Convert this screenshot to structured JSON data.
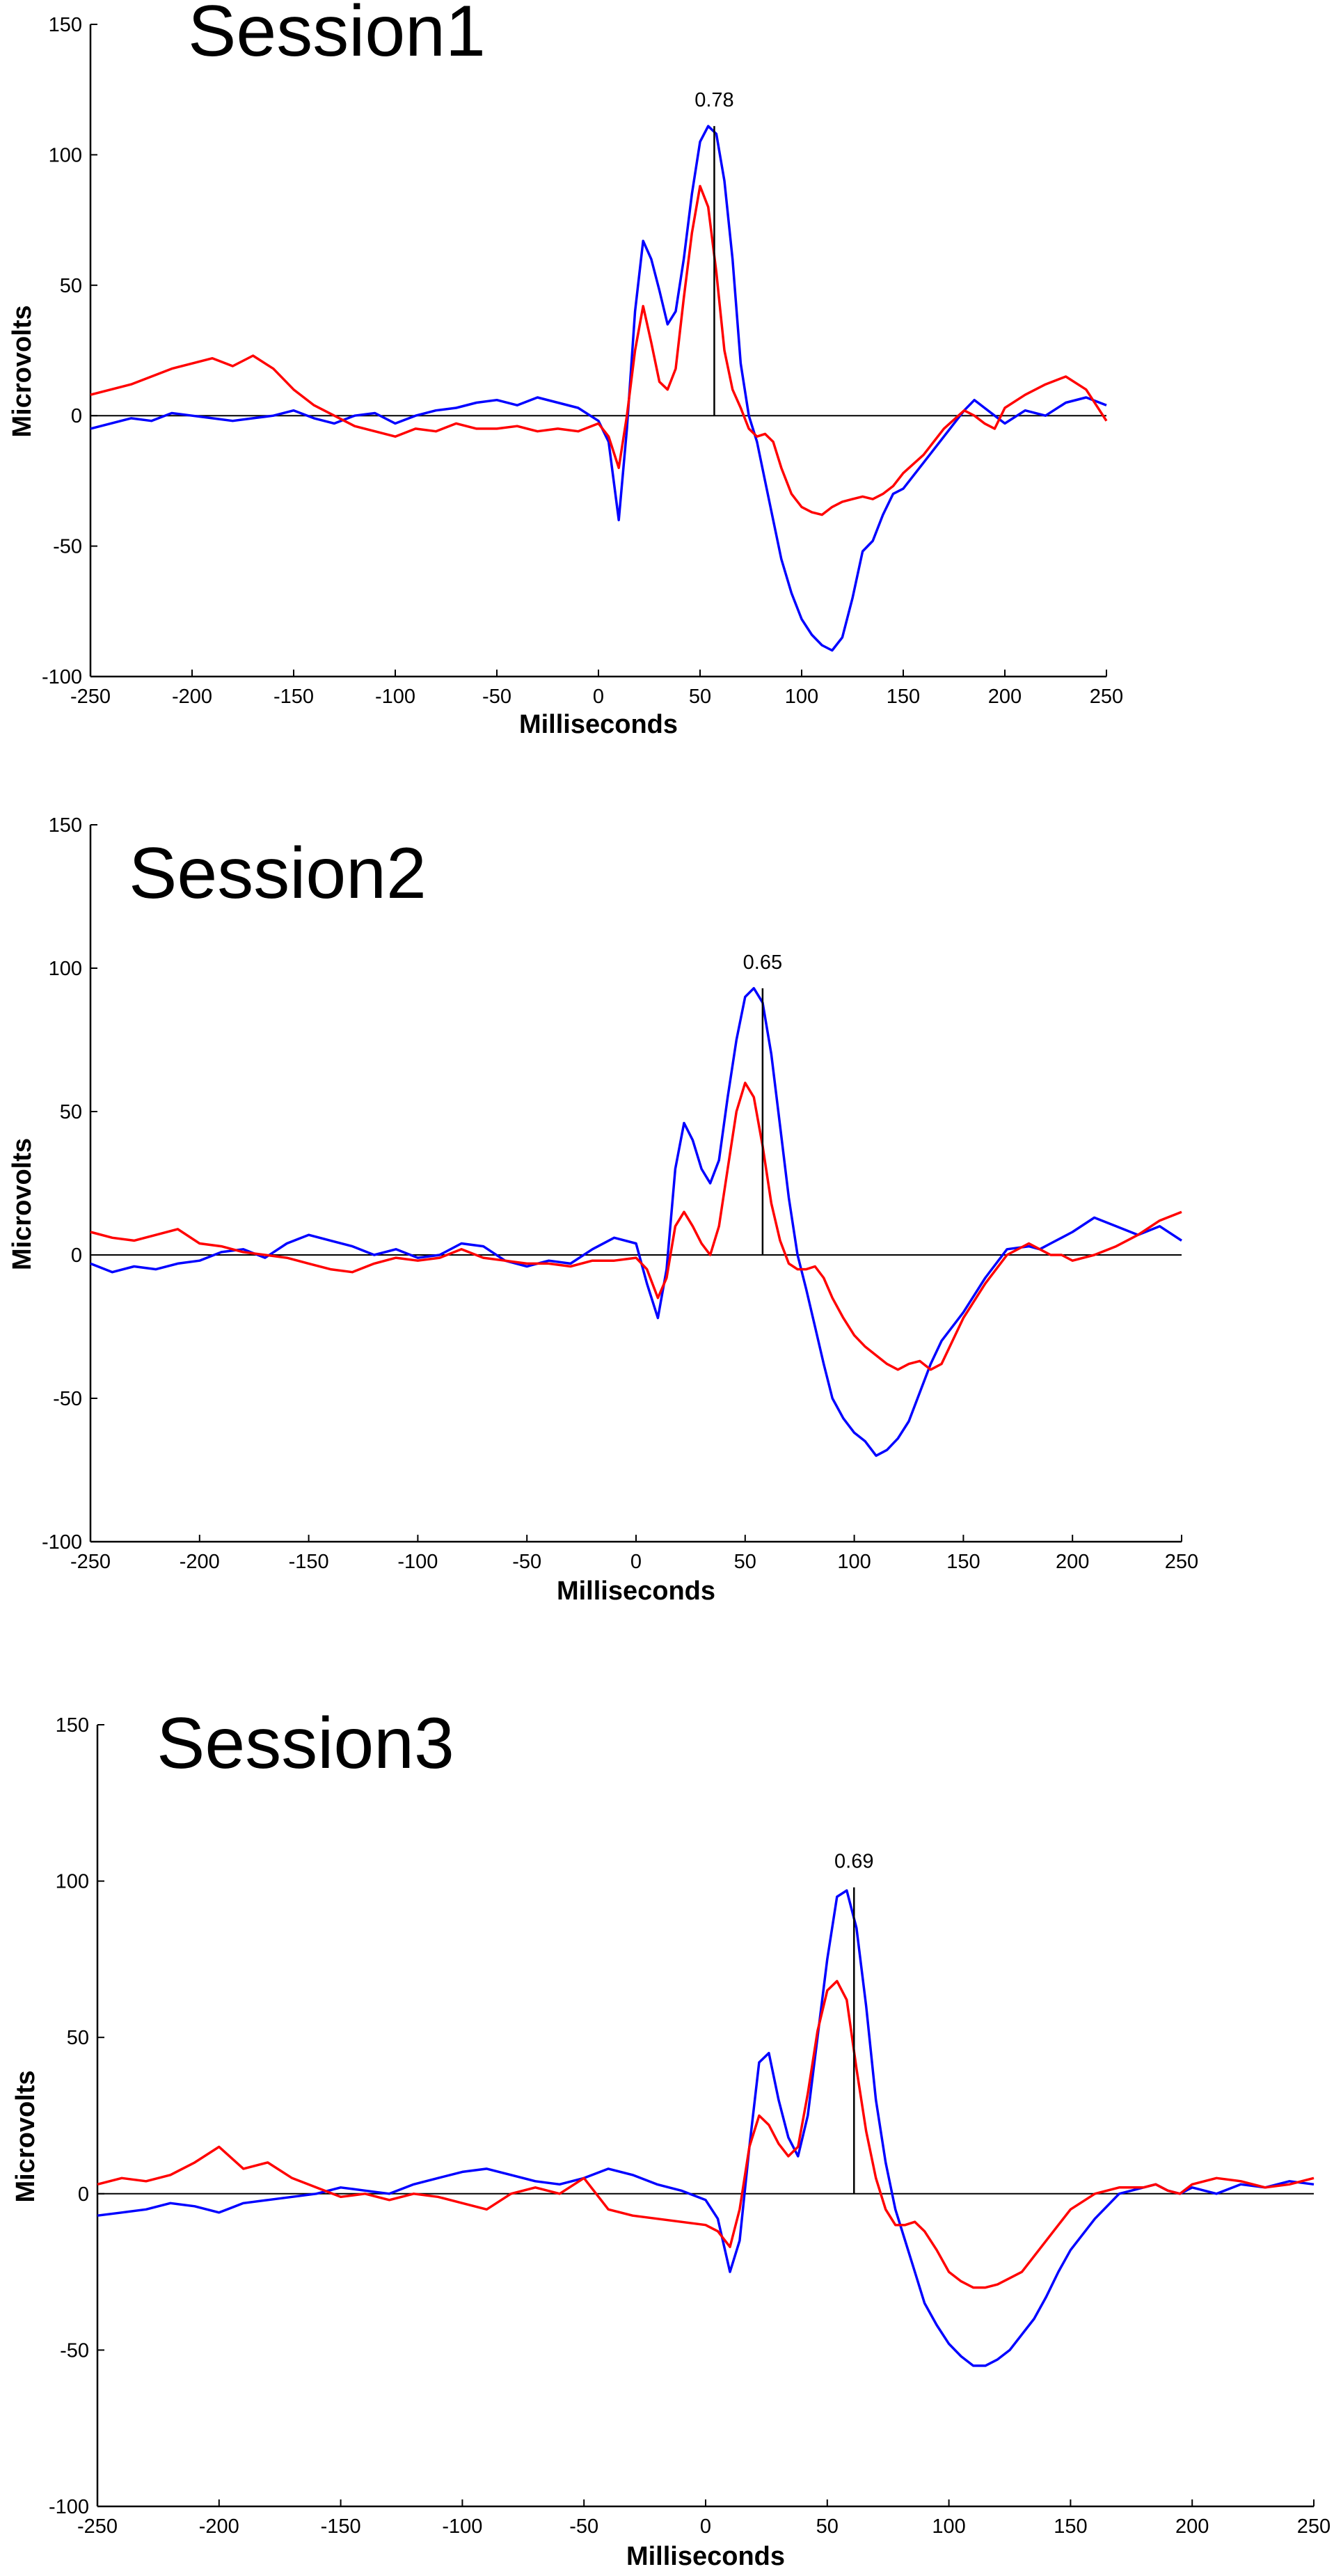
{
  "chart_data": [
    {
      "type": "line",
      "title": "Session1",
      "xlabel": "Milliseconds",
      "ylabel": "Microvolts",
      "xlim": [
        -250,
        250
      ],
      "ylim": [
        -100,
        150
      ],
      "xticks": [
        -250,
        -200,
        -150,
        -100,
        -50,
        0,
        50,
        100,
        150,
        200,
        250
      ],
      "yticks": [
        -100,
        -50,
        0,
        50,
        100,
        150
      ],
      "grid": false,
      "baseline": 0,
      "marker": {
        "x": 57,
        "y_top": 111,
        "label": "0.78"
      },
      "series": [
        {
          "color": "#0000ff",
          "x": [
            -250,
            -240,
            -230,
            -220,
            -210,
            -200,
            -190,
            -180,
            -170,
            -160,
            -150,
            -140,
            -130,
            -120,
            -110,
            -100,
            -90,
            -80,
            -70,
            -60,
            -50,
            -40,
            -30,
            -20,
            -10,
            0,
            5,
            10,
            14,
            18,
            22,
            26,
            30,
            34,
            38,
            42,
            46,
            50,
            54,
            58,
            62,
            66,
            70,
            74,
            78,
            82,
            86,
            90,
            95,
            100,
            105,
            110,
            115,
            120,
            125,
            130,
            135,
            140,
            145,
            150,
            160,
            170,
            180,
            185,
            190,
            195,
            200,
            210,
            220,
            230,
            240,
            250
          ],
          "values": [
            -5,
            -3,
            -1,
            -2,
            1,
            0,
            -1,
            -2,
            -1,
            0,
            2,
            -1,
            -3,
            0,
            1,
            -3,
            0,
            2,
            3,
            5,
            6,
            4,
            7,
            5,
            3,
            -2,
            -10,
            -40,
            -5,
            40,
            67,
            60,
            48,
            35,
            40,
            60,
            85,
            105,
            111,
            108,
            90,
            60,
            20,
            0,
            -10,
            -25,
            -40,
            -55,
            -68,
            -78,
            -84,
            -88,
            -90,
            -85,
            -70,
            -52,
            -48,
            -38,
            -30,
            -28,
            -18,
            -8,
            2,
            6,
            3,
            0,
            -3,
            2,
            0,
            5,
            7,
            4
          ]
        },
        {
          "color": "#ff0000",
          "x": [
            -250,
            -240,
            -230,
            -220,
            -210,
            -200,
            -190,
            -180,
            -170,
            -160,
            -150,
            -140,
            -130,
            -120,
            -110,
            -100,
            -90,
            -80,
            -70,
            -60,
            -50,
            -40,
            -30,
            -20,
            -10,
            0,
            5,
            10,
            14,
            18,
            22,
            26,
            30,
            34,
            38,
            42,
            46,
            50,
            54,
            58,
            62,
            66,
            70,
            74,
            78,
            82,
            86,
            90,
            95,
            100,
            105,
            110,
            115,
            120,
            125,
            130,
            135,
            140,
            145,
            150,
            160,
            170,
            180,
            185,
            190,
            195,
            200,
            210,
            220,
            230,
            240,
            250
          ],
          "values": [
            8,
            10,
            12,
            15,
            18,
            20,
            22,
            19,
            23,
            18,
            10,
            4,
            0,
            -4,
            -6,
            -8,
            -5,
            -6,
            -3,
            -5,
            -5,
            -4,
            -6,
            -5,
            -6,
            -3,
            -8,
            -20,
            0,
            25,
            42,
            28,
            13,
            10,
            18,
            45,
            70,
            88,
            80,
            55,
            25,
            10,
            3,
            -5,
            -8,
            -7,
            -10,
            -20,
            -30,
            -35,
            -37,
            -38,
            -35,
            -33,
            -32,
            -31,
            -32,
            -30,
            -27,
            -22,
            -15,
            -5,
            2,
            0,
            -3,
            -5,
            3,
            8,
            12,
            15,
            10,
            -2
          ]
        }
      ]
    },
    {
      "type": "line",
      "title": "Session2",
      "xlabel": "Milliseconds",
      "ylabel": "Microvolts",
      "xlim": [
        -250,
        250
      ],
      "ylim": [
        -100,
        150
      ],
      "xticks": [
        -250,
        -200,
        -150,
        -100,
        -50,
        0,
        50,
        100,
        150,
        200,
        250
      ],
      "yticks": [
        -100,
        -50,
        0,
        50,
        100,
        150
      ],
      "grid": false,
      "baseline": 0,
      "marker": {
        "x": 58,
        "y_top": 93,
        "label": "0.65"
      },
      "series": [
        {
          "color": "#0000ff",
          "x": [
            -250,
            -240,
            -230,
            -220,
            -210,
            -200,
            -190,
            -180,
            -170,
            -160,
            -150,
            -140,
            -130,
            -120,
            -110,
            -100,
            -90,
            -80,
            -70,
            -60,
            -50,
            -40,
            -30,
            -20,
            -10,
            0,
            5,
            10,
            14,
            18,
            22,
            26,
            30,
            34,
            38,
            42,
            46,
            50,
            54,
            58,
            62,
            66,
            70,
            74,
            78,
            82,
            86,
            90,
            95,
            100,
            105,
            110,
            115,
            120,
            125,
            130,
            135,
            140,
            145,
            150,
            160,
            170,
            180,
            185,
            190,
            195,
            200,
            210,
            220,
            230,
            240,
            250
          ],
          "values": [
            -3,
            -6,
            -4,
            -5,
            -3,
            -2,
            1,
            2,
            -1,
            4,
            7,
            5,
            3,
            0,
            2,
            -1,
            0,
            4,
            3,
            -2,
            -4,
            -2,
            -3,
            2,
            6,
            4,
            -10,
            -22,
            -5,
            30,
            46,
            40,
            30,
            25,
            33,
            55,
            75,
            90,
            93,
            88,
            70,
            45,
            20,
            0,
            -12,
            -25,
            -38,
            -50,
            -57,
            -62,
            -65,
            -70,
            -68,
            -64,
            -58,
            -48,
            -38,
            -30,
            -25,
            -20,
            -8,
            2,
            3,
            2,
            4,
            6,
            8,
            13,
            10,
            7,
            10,
            5
          ]
        },
        {
          "color": "#ff0000",
          "x": [
            -250,
            -240,
            -230,
            -220,
            -210,
            -200,
            -190,
            -180,
            -170,
            -160,
            -150,
            -140,
            -130,
            -120,
            -110,
            -100,
            -90,
            -80,
            -70,
            -60,
            -50,
            -40,
            -30,
            -20,
            -10,
            0,
            5,
            10,
            14,
            18,
            22,
            26,
            30,
            34,
            38,
            42,
            46,
            50,
            54,
            58,
            62,
            66,
            70,
            74,
            78,
            82,
            86,
            90,
            95,
            100,
            105,
            110,
            115,
            120,
            125,
            130,
            135,
            140,
            145,
            150,
            160,
            170,
            180,
            185,
            190,
            195,
            200,
            210,
            220,
            230,
            240,
            250
          ],
          "values": [
            8,
            6,
            5,
            7,
            9,
            4,
            3,
            1,
            0,
            -1,
            -3,
            -5,
            -6,
            -3,
            -1,
            -2,
            -1,
            2,
            -1,
            -2,
            -3,
            -3,
            -4,
            -2,
            -2,
            -1,
            -5,
            -15,
            -8,
            10,
            15,
            10,
            4,
            0,
            10,
            30,
            50,
            60,
            55,
            38,
            18,
            5,
            -3,
            -5,
            -5,
            -4,
            -8,
            -15,
            -22,
            -28,
            -32,
            -35,
            -38,
            -40,
            -38,
            -37,
            -40,
            -38,
            -30,
            -22,
            -10,
            0,
            4,
            2,
            0,
            0,
            -2,
            0,
            3,
            7,
            12,
            15
          ]
        }
      ]
    },
    {
      "type": "line",
      "title": "Session3",
      "xlabel": "Milliseconds",
      "ylabel": "Microvolts",
      "xlim": [
        -250,
        250
      ],
      "ylim": [
        -100,
        150
      ],
      "xticks": [
        -250,
        -200,
        -150,
        -100,
        -50,
        0,
        50,
        100,
        150,
        200,
        250
      ],
      "yticks": [
        -100,
        -50,
        0,
        50,
        100,
        150
      ],
      "grid": false,
      "baseline": 0,
      "marker": {
        "x": 61,
        "y_top": 98,
        "label": "0.69"
      },
      "series": [
        {
          "color": "#0000ff",
          "x": [
            -250,
            -240,
            -230,
            -220,
            -210,
            -200,
            -190,
            -180,
            -170,
            -160,
            -150,
            -140,
            -130,
            -120,
            -110,
            -100,
            -90,
            -80,
            -70,
            -60,
            -50,
            -40,
            -30,
            -20,
            -10,
            0,
            5,
            10,
            14,
            18,
            22,
            26,
            30,
            34,
            38,
            42,
            46,
            50,
            54,
            58,
            62,
            66,
            70,
            74,
            78,
            82,
            86,
            90,
            95,
            100,
            105,
            110,
            115,
            120,
            125,
            130,
            135,
            140,
            145,
            150,
            160,
            170,
            180,
            185,
            190,
            195,
            200,
            210,
            220,
            230,
            240,
            250
          ],
          "values": [
            -7,
            -6,
            -5,
            -3,
            -4,
            -6,
            -3,
            -2,
            -1,
            0,
            2,
            1,
            0,
            3,
            5,
            7,
            8,
            6,
            4,
            3,
            5,
            8,
            6,
            3,
            1,
            -2,
            -8,
            -25,
            -15,
            15,
            42,
            45,
            30,
            18,
            12,
            25,
            50,
            75,
            95,
            97,
            85,
            60,
            30,
            10,
            -5,
            -15,
            -25,
            -35,
            -42,
            -48,
            -52,
            -55,
            -55,
            -53,
            -50,
            -45,
            -40,
            -33,
            -25,
            -18,
            -8,
            0,
            2,
            3,
            1,
            0,
            2,
            0,
            3,
            2,
            4,
            3
          ]
        },
        {
          "color": "#ff0000",
          "x": [
            -250,
            -240,
            -230,
            -220,
            -210,
            -200,
            -190,
            -180,
            -170,
            -160,
            -150,
            -140,
            -130,
            -120,
            -110,
            -100,
            -90,
            -80,
            -70,
            -60,
            -50,
            -40,
            -30,
            -20,
            -10,
            0,
            5,
            10,
            14,
            18,
            22,
            26,
            30,
            34,
            38,
            42,
            46,
            50,
            54,
            58,
            62,
            66,
            70,
            74,
            78,
            82,
            86,
            90,
            95,
            100,
            105,
            110,
            115,
            120,
            125,
            130,
            135,
            140,
            145,
            150,
            160,
            170,
            180,
            185,
            190,
            195,
            200,
            210,
            220,
            230,
            240,
            250
          ],
          "values": [
            3,
            5,
            4,
            6,
            10,
            15,
            8,
            10,
            5,
            2,
            -1,
            0,
            -2,
            0,
            -1,
            -3,
            -5,
            0,
            2,
            0,
            5,
            -5,
            -7,
            -8,
            -9,
            -10,
            -12,
            -17,
            -5,
            15,
            25,
            22,
            16,
            12,
            15,
            32,
            52,
            65,
            68,
            62,
            40,
            20,
            5,
            -5,
            -10,
            -10,
            -9,
            -12,
            -18,
            -25,
            -28,
            -30,
            -30,
            -29,
            -27,
            -25,
            -20,
            -15,
            -10,
            -5,
            0,
            2,
            2,
            3,
            1,
            0,
            3,
            5,
            4,
            2,
            3,
            5
          ]
        }
      ]
    }
  ]
}
